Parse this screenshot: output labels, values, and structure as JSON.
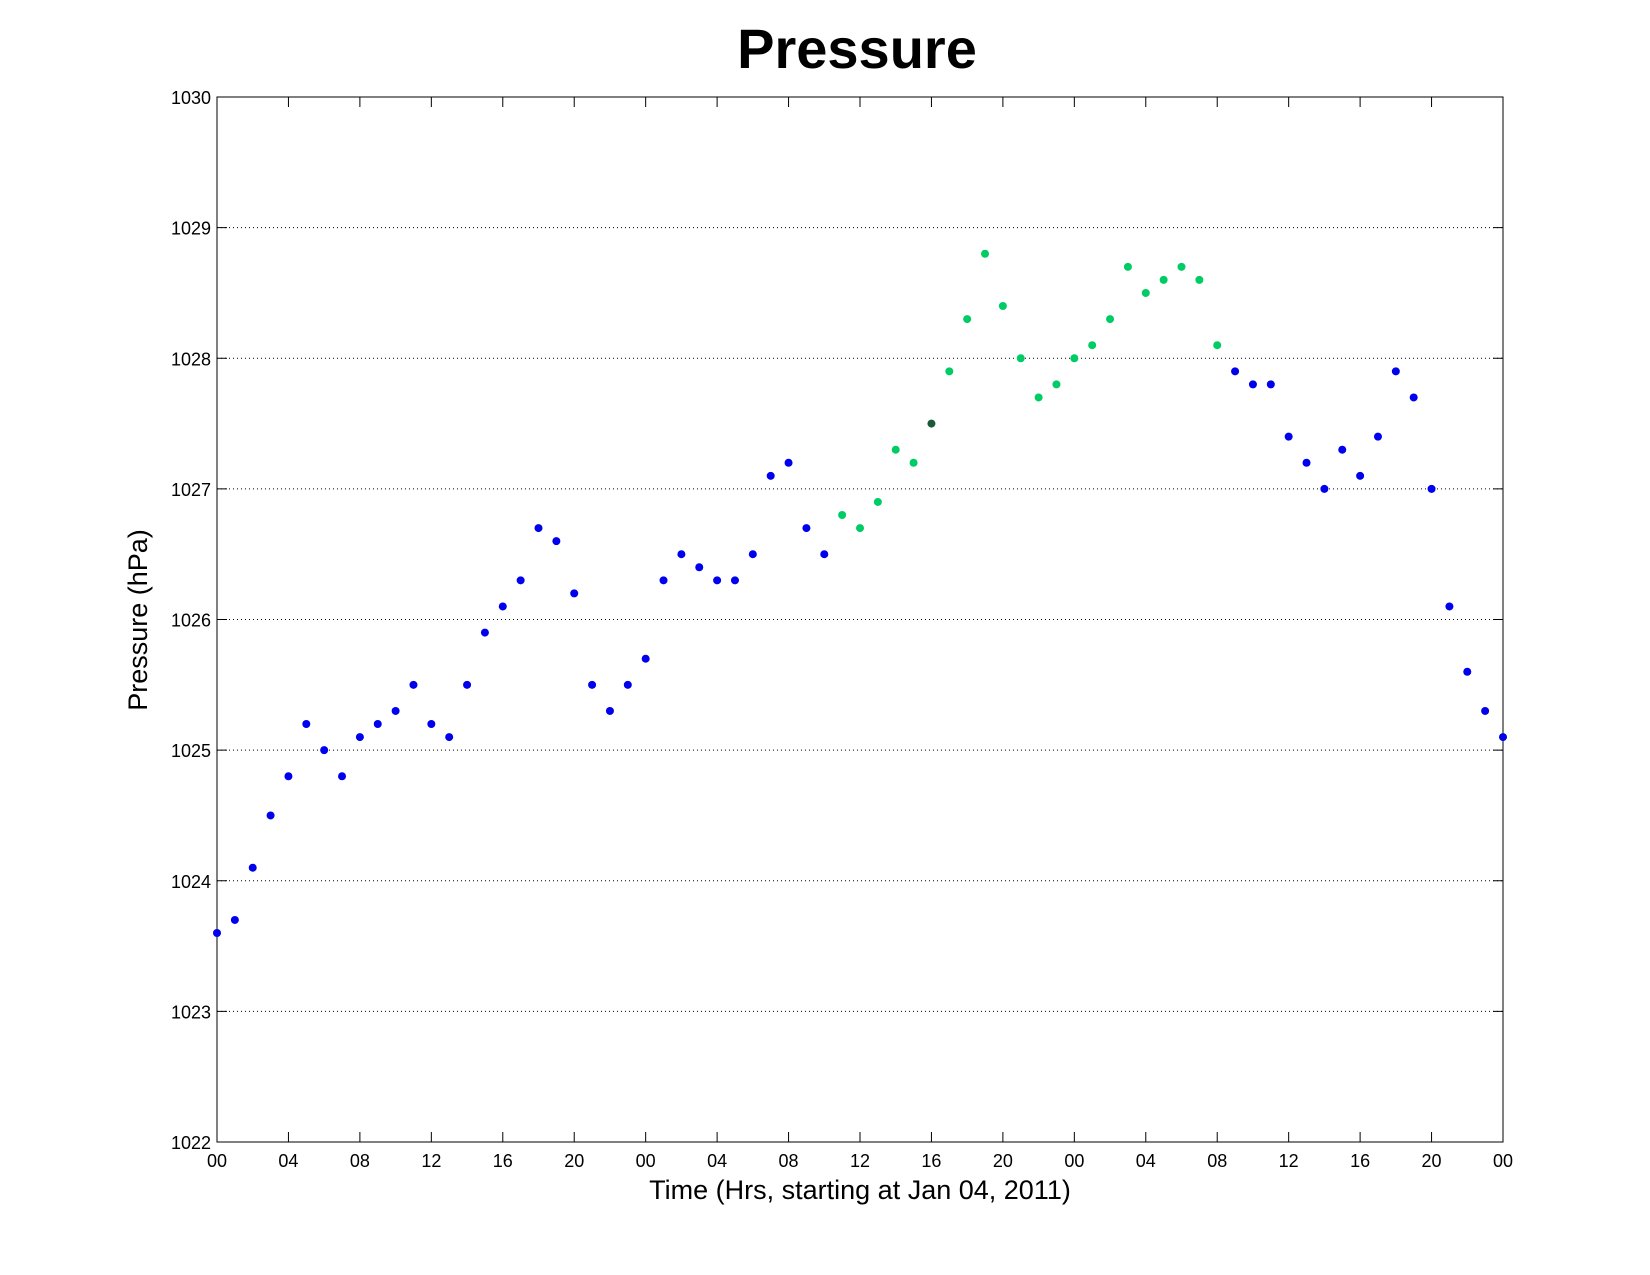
{
  "chart_data": {
    "type": "scatter",
    "title": "Pressure",
    "xlabel": "Time (Hrs, starting at Jan 04, 2011)",
    "ylabel": "Pressure (hPa)",
    "xlim": [
      0,
      72
    ],
    "ylim": [
      1022,
      1030
    ],
    "grid": "y-dotted",
    "x_ticks": [
      0,
      4,
      8,
      12,
      16,
      20,
      24,
      28,
      32,
      36,
      40,
      44,
      48,
      52,
      56,
      60,
      64,
      68,
      72
    ],
    "x_tick_labels": [
      "00",
      "04",
      "08",
      "12",
      "16",
      "20",
      "00",
      "04",
      "08",
      "12",
      "16",
      "20",
      "00",
      "04",
      "08",
      "12",
      "16",
      "20",
      "00"
    ],
    "y_ticks": [
      1022,
      1023,
      1024,
      1025,
      1026,
      1027,
      1028,
      1029,
      1030
    ],
    "y_tick_labels": [
      "1022",
      "1023",
      "1024",
      "1025",
      "1026",
      "1027",
      "1028",
      "1029",
      "1030"
    ],
    "colors": {
      "blue": "#0000ee",
      "green": "#00cc66",
      "dark": "#1a5a3a"
    },
    "series": [
      {
        "color": "blue",
        "x": [
          0,
          1,
          2,
          3,
          4,
          5,
          6,
          7,
          8,
          9,
          10,
          11,
          12,
          13,
          14,
          15,
          16,
          17,
          18,
          19,
          20,
          21,
          22,
          23,
          24,
          25,
          26,
          27,
          28,
          29,
          30,
          31,
          32,
          33,
          34,
          57,
          58,
          59,
          60,
          61,
          62,
          63,
          64,
          65,
          66,
          67,
          68,
          69,
          70,
          71,
          72
        ],
        "y": [
          1023.6,
          1023.7,
          1024.1,
          1024.5,
          1024.8,
          1025.2,
          1025.0,
          1024.8,
          1025.1,
          1025.2,
          1025.3,
          1025.5,
          1025.2,
          1025.1,
          1025.5,
          1025.9,
          1026.1,
          1026.3,
          1026.7,
          1026.6,
          1026.2,
          1025.5,
          1025.3,
          1025.5,
          1025.7,
          1026.3,
          1026.5,
          1026.4,
          1026.3,
          1026.3,
          1026.5,
          1027.1,
          1027.2,
          1026.7,
          1026.5,
          1027.9,
          1027.8,
          1027.8,
          1027.4,
          1027.2,
          1027.0,
          1027.3,
          1027.1,
          1027.4,
          1027.9,
          1027.7,
          1027.0,
          1026.1,
          1025.6,
          1025.3,
          1025.1
        ]
      },
      {
        "color": "green",
        "x": [
          35,
          36,
          37,
          38,
          39,
          41,
          42,
          43,
          44,
          45,
          46,
          47,
          48,
          49,
          50,
          51,
          52,
          53,
          54,
          55,
          56
        ],
        "y": [
          1026.8,
          1026.7,
          1026.9,
          1027.3,
          1027.2,
          1027.9,
          1028.3,
          1028.8,
          1028.4,
          1028.0,
          1027.7,
          1027.8,
          1028.0,
          1028.1,
          1028.3,
          1028.7,
          1028.5,
          1028.6,
          1028.7,
          1028.6,
          1028.1
        ]
      },
      {
        "color": "dark",
        "x": [
          40
        ],
        "y": [
          1027.5
        ]
      }
    ]
  }
}
